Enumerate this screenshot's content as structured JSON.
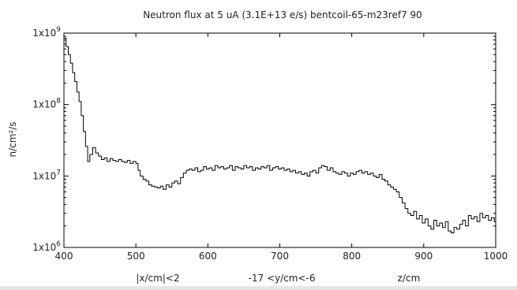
{
  "chart_data": {
    "type": "line",
    "title": "Neutron flux at 5 uA (3.1E+13 e/s) bentcoil-65-m23ref7 90",
    "xlabel": "z/cm",
    "ylabel": "n/cm²/s",
    "xlim": [
      400,
      1000
    ],
    "ylim": [
      1000000,
      1000000000
    ],
    "y_scale": "log",
    "grid": false,
    "legend": "none",
    "x_ticks": [
      400,
      500,
      600,
      700,
      800,
      900,
      1000
    ],
    "x_tick_labels": [
      "400",
      "500",
      "600",
      "700",
      "800",
      "900",
      "1000"
    ],
    "y_ticks": [
      1000000,
      10000000,
      100000000,
      1000000000
    ],
    "y_tick_labels": [
      {
        "base": "1x10",
        "exp": "6"
      },
      {
        "base": "1x10",
        "exp": "7"
      },
      {
        "base": "1x10",
        "exp": "8"
      },
      {
        "base": "1x10",
        "exp": "9"
      }
    ],
    "annotations": [
      "|x/cm|<2",
      "-17 <y/cm<-6"
    ],
    "line_color": "#000000",
    "series": [
      {
        "step": "post",
        "x": [
          400,
          403,
          406,
          409,
          412,
          415,
          418,
          421,
          424,
          427,
          430,
          433,
          436,
          440,
          444,
          448,
          452,
          456,
          460,
          464,
          468,
          472,
          476,
          480,
          484,
          488,
          492,
          496,
          500,
          503,
          506,
          510,
          514,
          518,
          522,
          526,
          530,
          534,
          538,
          542,
          546,
          550,
          554,
          558,
          562,
          566,
          570,
          574,
          578,
          582,
          586,
          590,
          594,
          598,
          602,
          606,
          610,
          614,
          618,
          622,
          626,
          630,
          634,
          638,
          642,
          646,
          650,
          654,
          658,
          662,
          666,
          670,
          674,
          678,
          682,
          686,
          690,
          694,
          698,
          702,
          706,
          710,
          714,
          718,
          722,
          726,
          730,
          734,
          738,
          742,
          746,
          750,
          754,
          758,
          762,
          766,
          770,
          774,
          778,
          782,
          786,
          790,
          794,
          798,
          802,
          806,
          810,
          814,
          818,
          822,
          826,
          830,
          834,
          838,
          842,
          846,
          850,
          854,
          858,
          862,
          866,
          870,
          874,
          878,
          882,
          886,
          890,
          894,
          898,
          902,
          906,
          910,
          914,
          918,
          922,
          926,
          930,
          934,
          938,
          942,
          946,
          950,
          954,
          958,
          962,
          966,
          970,
          974,
          978,
          982,
          986,
          990,
          994,
          998
        ],
        "y": [
          850000000.0,
          650000000.0,
          500000000.0,
          380000000.0,
          280000000.0,
          210000000.0,
          150000000.0,
          110000000.0,
          70000000.0,
          42000000.0,
          26000000.0,
          16000000.0,
          20000000.0,
          25000000.0,
          21000000.0,
          19000000.0,
          17000000.0,
          18000000.0,
          16000000.0,
          17500000.0,
          16500000.0,
          16000000.0,
          17000000.0,
          16000000.0,
          15500000.0,
          16500000.0,
          15000000.0,
          16000000.0,
          15000000.0,
          12000000.0,
          10000000.0,
          9000000.0,
          8500000.0,
          7500000.0,
          7200000.0,
          7000000.0,
          6800000.0,
          7200000.0,
          6500000.0,
          7500000.0,
          7000000.0,
          8000000.0,
          8500000.0,
          7800000.0,
          9500000.0,
          11000000.0,
          12000000.0,
          12500000.0,
          12000000.0,
          13000000.0,
          11500000.0,
          12000000.0,
          13500000.0,
          12500000.0,
          13000000.0,
          12000000.0,
          14000000.0,
          13000000.0,
          13500000.0,
          12500000.0,
          13000000.0,
          14000000.0,
          12000000.0,
          13500000.0,
          13000000.0,
          12500000.0,
          14000000.0,
          13000000.0,
          13500000.0,
          12000000.0,
          13000000.0,
          12500000.0,
          13500000.0,
          13000000.0,
          14000000.0,
          12000000.0,
          13000000.0,
          13500000.0,
          12500000.0,
          13000000.0,
          12000000.0,
          12500000.0,
          11500000.0,
          12000000.0,
          11000000.0,
          11500000.0,
          10500000.0,
          11000000.0,
          10000000.0,
          11500000.0,
          12000000.0,
          11000000.0,
          13000000.0,
          14000000.0,
          13500000.0,
          12000000.0,
          13000000.0,
          11500000.0,
          11000000.0,
          10500000.0,
          11500000.0,
          11000000.0,
          10000000.0,
          11000000.0,
          10500000.0,
          11500000.0,
          12000000.0,
          11000000.0,
          11500000.0,
          10500000.0,
          11000000.0,
          10000000.0,
          9500000.0,
          10500000.0,
          9000000.0,
          8500000.0,
          7500000.0,
          7000000.0,
          6500000.0,
          6000000.0,
          5000000.0,
          4200000.0,
          3500000.0,
          3000000.0,
          2800000.0,
          3200000.0,
          2500000.0,
          2800000.0,
          2200000.0,
          2500000.0,
          2000000.0,
          1800000.0,
          2400000.0,
          2000000.0,
          2200000.0,
          1900000.0,
          2300000.0,
          1700000.0,
          1600000.0,
          1900000.0,
          1800000.0,
          2100000.0,
          2400000.0,
          2000000.0,
          2800000.0,
          2500000.0,
          2700000.0,
          2300000.0,
          3000000.0,
          2600000.0,
          2800000.0,
          2400000.0,
          2600000.0,
          2300000.0
        ]
      }
    ]
  }
}
